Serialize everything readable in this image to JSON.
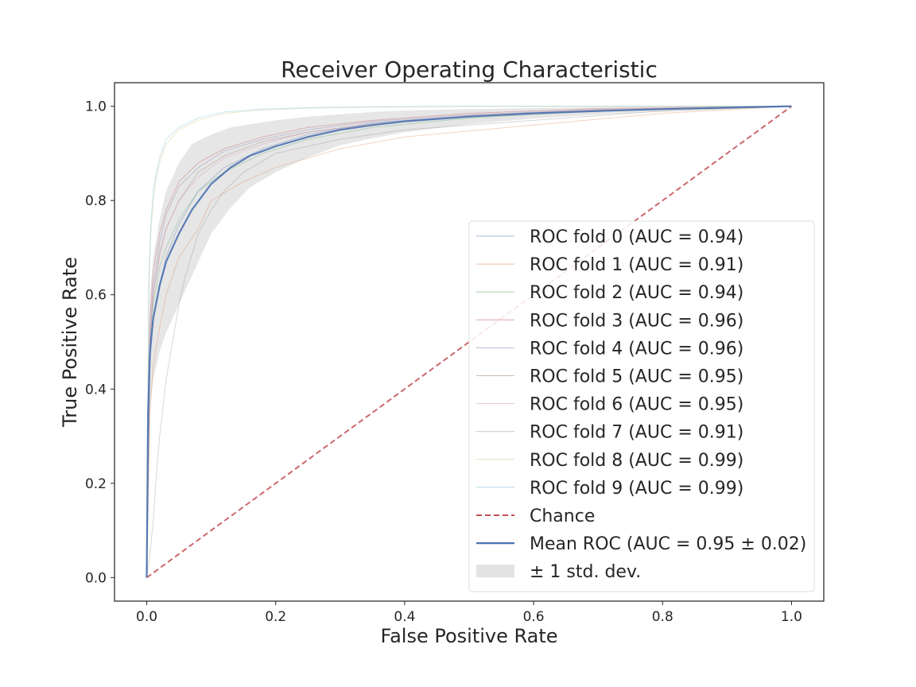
{
  "chart_data": {
    "type": "line",
    "title": "Receiver Operating Characteristic",
    "xlabel": "False Positive Rate",
    "ylabel": "True Positive Rate",
    "xlim": [
      -0.05,
      1.05
    ],
    "ylim": [
      -0.05,
      1.05
    ],
    "xticks": [
      {
        "value": 0.0,
        "label": "0.0"
      },
      {
        "value": 0.2,
        "label": "0.2"
      },
      {
        "value": 0.4,
        "label": "0.4"
      },
      {
        "value": 0.6,
        "label": "0.6"
      },
      {
        "value": 0.8,
        "label": "0.8"
      },
      {
        "value": 1.0,
        "label": "1.0"
      }
    ],
    "yticks": [
      {
        "value": 0.0,
        "label": "0.0"
      },
      {
        "value": 0.2,
        "label": "0.2"
      },
      {
        "value": 0.4,
        "label": "0.4"
      },
      {
        "value": 0.6,
        "label": "0.6"
      },
      {
        "value": 0.8,
        "label": "0.8"
      },
      {
        "value": 1.0,
        "label": "1.0"
      }
    ],
    "grid": false,
    "legend_position": "lower right",
    "series": [
      {
        "name": "ROC fold 0 (AUC = 0.94)",
        "style": "fold",
        "color": "#4c72b0",
        "x": [
          0,
          0.005,
          0.01,
          0.02,
          0.03,
          0.05,
          0.08,
          0.12,
          0.18,
          0.25,
          0.35,
          0.5,
          0.7,
          1.0
        ],
        "y": [
          0,
          0.45,
          0.55,
          0.62,
          0.68,
          0.75,
          0.82,
          0.87,
          0.91,
          0.94,
          0.965,
          0.98,
          0.99,
          1.0
        ]
      },
      {
        "name": "ROC fold 1 (AUC = 0.91)",
        "style": "fold",
        "color": "#dd8452",
        "x": [
          0,
          0.005,
          0.01,
          0.02,
          0.03,
          0.05,
          0.08,
          0.1,
          0.15,
          0.2,
          0.3,
          0.4,
          0.6,
          0.8,
          1.0
        ],
        "y": [
          0,
          0.35,
          0.45,
          0.53,
          0.6,
          0.68,
          0.74,
          0.8,
          0.84,
          0.87,
          0.91,
          0.935,
          0.96,
          0.985,
          1.0
        ]
      },
      {
        "name": "ROC fold 2 (AUC = 0.94)",
        "style": "fold",
        "color": "#55a868",
        "x": [
          0,
          0.005,
          0.01,
          0.02,
          0.03,
          0.05,
          0.08,
          0.12,
          0.18,
          0.25,
          0.35,
          0.5,
          0.7,
          1.0
        ],
        "y": [
          0,
          0.48,
          0.58,
          0.66,
          0.7,
          0.76,
          0.82,
          0.86,
          0.9,
          0.93,
          0.955,
          0.975,
          0.99,
          1.0
        ]
      },
      {
        "name": "ROC fold 3 (AUC = 0.96)",
        "style": "fold",
        "color": "#c44e52",
        "x": [
          0,
          0.005,
          0.01,
          0.02,
          0.03,
          0.05,
          0.08,
          0.12,
          0.18,
          0.25,
          0.35,
          0.5,
          0.7,
          1.0
        ],
        "y": [
          0,
          0.55,
          0.65,
          0.73,
          0.78,
          0.84,
          0.88,
          0.91,
          0.935,
          0.955,
          0.97,
          0.985,
          0.995,
          1.0
        ]
      },
      {
        "name": "ROC fold 4 (AUC = 0.96)",
        "style": "fold",
        "color": "#8172b3",
        "x": [
          0,
          0.005,
          0.01,
          0.02,
          0.03,
          0.05,
          0.08,
          0.12,
          0.18,
          0.25,
          0.35,
          0.5,
          0.7,
          1.0
        ],
        "y": [
          0,
          0.52,
          0.62,
          0.71,
          0.77,
          0.83,
          0.87,
          0.905,
          0.93,
          0.95,
          0.968,
          0.982,
          0.993,
          1.0
        ]
      },
      {
        "name": "ROC fold 5 (AUC = 0.95)",
        "style": "fold",
        "color": "#937860",
        "x": [
          0,
          0.005,
          0.01,
          0.02,
          0.03,
          0.05,
          0.08,
          0.12,
          0.18,
          0.25,
          0.35,
          0.5,
          0.7,
          1.0
        ],
        "y": [
          0,
          0.5,
          0.6,
          0.69,
          0.74,
          0.8,
          0.86,
          0.895,
          0.925,
          0.945,
          0.963,
          0.98,
          0.992,
          1.0
        ]
      },
      {
        "name": "ROC fold 6 (AUC = 0.95)",
        "style": "fold",
        "color": "#da8bc3",
        "x": [
          0,
          0.005,
          0.01,
          0.02,
          0.03,
          0.05,
          0.08,
          0.12,
          0.18,
          0.25,
          0.35,
          0.5,
          0.7,
          1.0
        ],
        "y": [
          0,
          0.5,
          0.6,
          0.68,
          0.74,
          0.8,
          0.85,
          0.89,
          0.92,
          0.945,
          0.962,
          0.98,
          0.992,
          1.0
        ]
      },
      {
        "name": "ROC fold 7 (AUC = 0.91)",
        "style": "fold",
        "color": "#8c8c8c",
        "x": [
          0,
          0.005,
          0.01,
          0.015,
          0.02,
          0.03,
          0.04,
          0.05,
          0.06,
          0.08,
          0.1,
          0.12,
          0.15,
          0.2,
          0.3,
          0.4,
          0.6,
          0.8,
          1.0
        ],
        "y": [
          0,
          0.05,
          0.12,
          0.22,
          0.3,
          0.42,
          0.5,
          0.58,
          0.64,
          0.73,
          0.78,
          0.82,
          0.86,
          0.9,
          0.93,
          0.95,
          0.97,
          0.99,
          1.0
        ]
      },
      {
        "name": "ROC fold 8 (AUC = 0.99)",
        "style": "fold",
        "color": "#ccb974",
        "x": [
          0,
          0.003,
          0.006,
          0.01,
          0.015,
          0.02,
          0.03,
          0.05,
          0.08,
          0.12,
          0.18,
          0.25,
          0.35,
          0.5,
          1.0
        ],
        "y": [
          0,
          0.6,
          0.72,
          0.8,
          0.85,
          0.88,
          0.92,
          0.95,
          0.97,
          0.985,
          0.992,
          0.996,
          0.998,
          1.0,
          1.0
        ]
      },
      {
        "name": "ROC fold 9 (AUC = 0.99)",
        "style": "fold",
        "color": "#64b5cd",
        "x": [
          0,
          0.003,
          0.006,
          0.01,
          0.015,
          0.02,
          0.03,
          0.05,
          0.08,
          0.12,
          0.18,
          0.25,
          0.35,
          0.5,
          1.0
        ],
        "y": [
          0,
          0.62,
          0.74,
          0.82,
          0.86,
          0.89,
          0.93,
          0.955,
          0.975,
          0.988,
          0.994,
          0.997,
          0.999,
          1.0,
          1.0
        ]
      },
      {
        "name": "Chance",
        "style": "chance",
        "color": "#c44e52",
        "x": [
          0,
          1
        ],
        "y": [
          0,
          1
        ]
      },
      {
        "name": "Mean ROC (AUC = 0.95 ± 0.02)",
        "style": "mean",
        "color": "#4c72b0",
        "x": [
          0,
          0.002,
          0.005,
          0.01,
          0.02,
          0.03,
          0.05,
          0.07,
          0.1,
          0.13,
          0.16,
          0.2,
          0.25,
          0.3,
          0.35,
          0.4,
          0.5,
          0.6,
          0.7,
          0.8,
          0.9,
          1.0
        ],
        "y": [
          0,
          0.35,
          0.48,
          0.55,
          0.62,
          0.67,
          0.73,
          0.78,
          0.835,
          0.87,
          0.895,
          0.915,
          0.935,
          0.95,
          0.96,
          0.968,
          0.978,
          0.985,
          0.99,
          0.994,
          0.997,
          1.0
        ]
      }
    ],
    "std_band": {
      "label": "± 1 std. dev.",
      "color": "#c8c8c8",
      "x": [
        0,
        0.002,
        0.005,
        0.01,
        0.02,
        0.03,
        0.05,
        0.07,
        0.1,
        0.13,
        0.16,
        0.2,
        0.25,
        0.3,
        0.35,
        0.4,
        0.5,
        0.6,
        0.7,
        0.8,
        0.9,
        1.0
      ],
      "upper": [
        0,
        0.45,
        0.6,
        0.68,
        0.76,
        0.82,
        0.88,
        0.92,
        0.94,
        0.955,
        0.962,
        0.97,
        0.978,
        0.983,
        0.988,
        0.991,
        0.994,
        0.996,
        0.998,
        0.999,
        1.0,
        1.0
      ],
      "lower": [
        0,
        0.25,
        0.36,
        0.42,
        0.48,
        0.52,
        0.58,
        0.64,
        0.73,
        0.785,
        0.828,
        0.86,
        0.892,
        0.917,
        0.932,
        0.945,
        0.962,
        0.974,
        0.982,
        0.989,
        0.994,
        1.0
      ]
    }
  }
}
